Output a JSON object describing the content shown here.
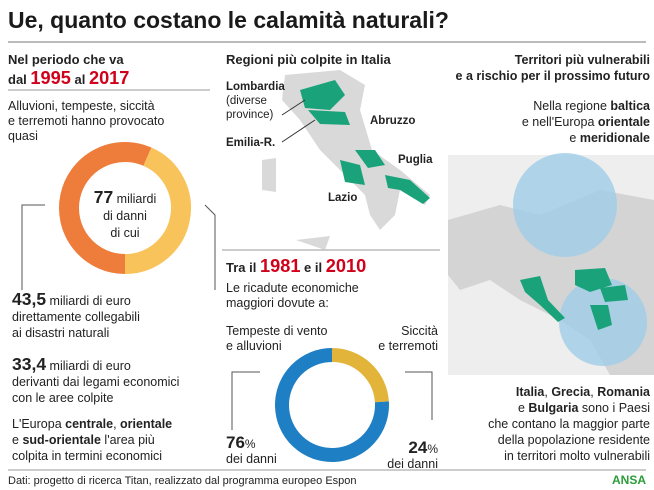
{
  "title": "Ue, quanto costano le calamità naturali?",
  "left": {
    "period": [
      [
        {
          "text": "Nel periodo che va",
          "bold": true
        }
      ],
      [
        {
          "text": "dal ",
          "bold": true
        },
        {
          "text": "1995",
          "bold": true,
          "color": "#d0021b",
          "big": true
        },
        {
          "text": " al ",
          "bold": true
        },
        {
          "text": "2017",
          "bold": true,
          "color": "#d0021b",
          "big": true
        }
      ]
    ],
    "intro": [
      [
        {
          "text": "Alluvioni, tempeste, siccità"
        }
      ],
      [
        {
          "text": "e terremoti hanno provocato"
        }
      ],
      [
        {
          "text": "quasi"
        }
      ]
    ],
    "total": [
      [
        {
          "text": "77",
          "bold": true,
          "big": true
        },
        {
          "text": " miliardi"
        }
      ],
      [
        {
          "text": "di danni"
        }
      ],
      [
        {
          "text": "di cui"
        }
      ]
    ],
    "ring": {
      "values": [
        43.5,
        33.4
      ],
      "colors": [
        "#ee7d3b",
        "#f8c35a"
      ]
    },
    "item1": [
      [
        {
          "text": "43,5",
          "bold": true,
          "big": true
        },
        {
          "text": " miliardi di euro"
        }
      ],
      [
        {
          "text": "direttamente collegabili"
        }
      ],
      [
        {
          "text": "ai disastri naturali"
        }
      ]
    ],
    "item2": [
      [
        {
          "text": "33,4",
          "bold": true,
          "big": true
        },
        {
          "text": " miliardi di euro"
        }
      ],
      [
        {
          "text": "derivanti dai legami economici"
        }
      ],
      [
        {
          "text": "con le aree colpite"
        }
      ]
    ],
    "note": [
      [
        {
          "text": "L'Europa "
        },
        {
          "text": "centrale",
          "bold": true
        },
        {
          "text": ", "
        },
        {
          "text": "orientale",
          "bold": true
        }
      ],
      [
        {
          "text": "e "
        },
        {
          "text": "sud-orientale",
          "bold": true
        },
        {
          "text": " l'area più"
        }
      ],
      [
        {
          "text": "colpita in termini economici"
        }
      ]
    ]
  },
  "middle": {
    "heading": [
      [
        {
          "text": "Regioni più colpite in Italia",
          "bold": true
        }
      ]
    ],
    "regions": {
      "lombardia": [
        [
          {
            "text": "Lombardia",
            "bold": true
          }
        ],
        [
          {
            "text": "(diverse"
          }
        ],
        [
          {
            "text": "province)"
          }
        ]
      ],
      "emilia": [
        [
          {
            "text": "Emilia-R.",
            "bold": true
          }
        ]
      ],
      "abruzzo": [
        [
          {
            "text": "Abruzzo",
            "bold": true
          }
        ]
      ],
      "puglia": [
        [
          {
            "text": "Puglia",
            "bold": true
          }
        ]
      ],
      "lazio": [
        [
          {
            "text": "Lazio",
            "bold": true
          }
        ]
      ]
    },
    "period": [
      [
        {
          "text": "Tra il ",
          "bold": true
        },
        {
          "text": "1981",
          "bold": true,
          "color": "#d0021b",
          "big": true
        },
        {
          "text": " e il ",
          "bold": true
        },
        {
          "text": "2010",
          "bold": true,
          "color": "#d0021b",
          "big": true
        }
      ]
    ],
    "intro": [
      [
        {
          "text": "Le ricadute economiche"
        }
      ],
      [
        {
          "text": "maggiori dovute a:"
        }
      ]
    ],
    "cause1": [
      [
        {
          "text": "Tempeste di vento"
        }
      ],
      [
        {
          "text": "e alluvioni"
        }
      ]
    ],
    "cause2": [
      [
        {
          "text": "Siccità"
        }
      ],
      [
        {
          "text": "e terremoti"
        }
      ]
    ],
    "donut": {
      "values": [
        76,
        24
      ],
      "unit": "%",
      "caption": "dei danni",
      "colors": [
        "#1f7fc4",
        "#e2b53a"
      ]
    }
  },
  "right": {
    "heading": [
      [
        {
          "text": "Territori più vulnerabili",
          "bold": true
        }
      ],
      [
        {
          "text": "e a rischio per il prossimo futuro",
          "bold": true
        }
      ]
    ],
    "intro": [
      [
        {
          "text": "Nella regione "
        },
        {
          "text": "baltica",
          "bold": true
        }
      ],
      [
        {
          "text": "e nell'Europa "
        },
        {
          "text": "orientale",
          "bold": true
        }
      ],
      [
        {
          "text": "e "
        },
        {
          "text": "meridionale",
          "bold": true
        }
      ]
    ],
    "summary": [
      [
        {
          "text": "Italia",
          "bold": true
        },
        {
          "text": ", "
        },
        {
          "text": "Grecia",
          "bold": true
        },
        {
          "text": ", "
        },
        {
          "text": "Romania",
          "bold": true
        }
      ],
      [
        {
          "text": "e "
        },
        {
          "text": "Bulgaria",
          "bold": true
        },
        {
          "text": " sono i Paesi"
        }
      ],
      [
        {
          "text": "che contano la maggior parte"
        }
      ],
      [
        {
          "text": "della popolazione residente"
        }
      ],
      [
        {
          "text": "in territori molto vulnerabili"
        }
      ]
    ]
  },
  "footer": {
    "source": "Dati: progetto di ricerca Titan, realizzato dal programma europeo Espon",
    "brand": "ANSA"
  }
}
